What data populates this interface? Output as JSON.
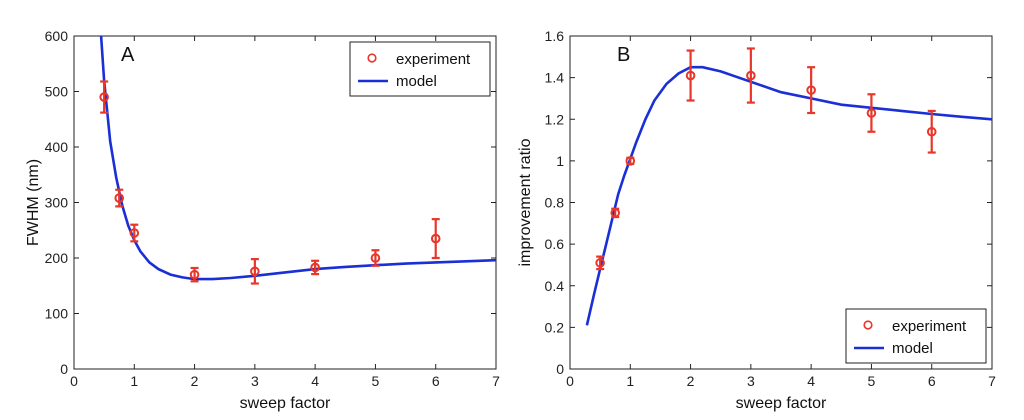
{
  "colors": {
    "experiment": "#e8362a",
    "model": "#1a2fd6",
    "axis": "#222222"
  },
  "chart_data": [
    {
      "type": "scatter",
      "panel_label": "A",
      "xlabel": "sweep factor",
      "ylabel": "FWHM (nm)",
      "xlim": [
        0,
        7
      ],
      "ylim": [
        0,
        600
      ],
      "xticks": [
        0,
        1,
        2,
        3,
        4,
        5,
        6,
        7
      ],
      "yticks": [
        0,
        100,
        200,
        300,
        400,
        500,
        600
      ],
      "grid": false,
      "legend_position": "top-right",
      "series": [
        {
          "name": "experiment",
          "kind": "scatter",
          "x": [
            0.5,
            0.75,
            1,
            2,
            3,
            4,
            5,
            6
          ],
          "y": [
            490,
            308,
            245,
            170,
            176,
            183,
            200,
            235
          ],
          "err": [
            28,
            15,
            15,
            12,
            22,
            12,
            14,
            35
          ]
        },
        {
          "name": "model",
          "kind": "line",
          "x": [
            0.45,
            0.5,
            0.6,
            0.7,
            0.8,
            0.9,
            1.0,
            1.1,
            1.25,
            1.4,
            1.6,
            1.8,
            2.0,
            2.3,
            2.6,
            3.0,
            3.5,
            4.0,
            4.5,
            5.0,
            5.5,
            6.0,
            6.5,
            7.0
          ],
          "y": [
            600,
            520,
            410,
            345,
            295,
            258,
            232,
            212,
            192,
            180,
            170,
            165,
            162,
            162,
            164,
            168,
            174,
            180,
            184,
            187,
            190,
            192,
            194,
            196
          ]
        }
      ]
    },
    {
      "type": "scatter",
      "panel_label": "B",
      "xlabel": "sweep factor",
      "ylabel": "improvement ratio",
      "xlim": [
        0,
        7
      ],
      "ylim": [
        0,
        1.6
      ],
      "xticks": [
        0,
        1,
        2,
        3,
        4,
        5,
        6,
        7
      ],
      "yticks": [
        0,
        0.2,
        0.4,
        0.6,
        0.8,
        1,
        1.2,
        1.4,
        1.6
      ],
      "grid": false,
      "legend_position": "bottom-right",
      "series": [
        {
          "name": "experiment",
          "kind": "scatter",
          "x": [
            0.5,
            0.75,
            1,
            2,
            3,
            4,
            5,
            6
          ],
          "y": [
            0.51,
            0.75,
            1.0,
            1.41,
            1.41,
            1.34,
            1.23,
            1.14
          ],
          "err": [
            0.03,
            0.02,
            0.015,
            0.12,
            0.13,
            0.11,
            0.09,
            0.1
          ]
        },
        {
          "name": "model",
          "kind": "line",
          "x": [
            0.28,
            0.4,
            0.5,
            0.6,
            0.7,
            0.8,
            0.9,
            1.0,
            1.1,
            1.25,
            1.4,
            1.6,
            1.8,
            2.0,
            2.2,
            2.5,
            3.0,
            3.5,
            4.0,
            4.5,
            5.0,
            5.5,
            6.0,
            6.5,
            7.0
          ],
          "y": [
            0.21,
            0.36,
            0.48,
            0.6,
            0.72,
            0.84,
            0.93,
            1.01,
            1.09,
            1.2,
            1.29,
            1.37,
            1.42,
            1.45,
            1.45,
            1.43,
            1.38,
            1.33,
            1.3,
            1.27,
            1.255,
            1.24,
            1.225,
            1.212,
            1.2
          ]
        }
      ]
    }
  ]
}
